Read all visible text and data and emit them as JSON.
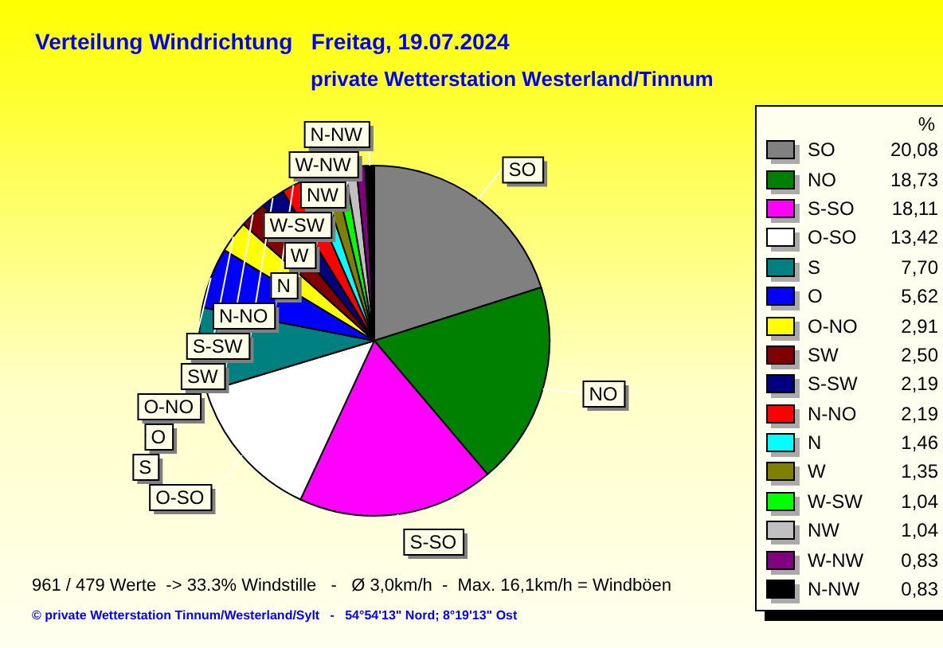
{
  "chart_data": {
    "type": "pie",
    "title": "Verteilung Windrichtung   Freitag, 19.07.2024",
    "subtitle": "private Wetterstation Westerland/Tinnum",
    "legend": "right",
    "legend_title": "%",
    "data_labels": true,
    "categories": [
      "SO",
      "NO",
      "S-SO",
      "O-SO",
      "S",
      "O",
      "O-NO",
      "SW",
      "S-SW",
      "N-NO",
      "N",
      "W",
      "W-SW",
      "NW",
      "W-NW",
      "N-NW"
    ],
    "values": [
      20.08,
      18.73,
      18.11,
      13.42,
      7.7,
      5.62,
      2.91,
      2.5,
      2.19,
      2.19,
      1.46,
      1.35,
      1.04,
      1.04,
      0.83,
      0.83
    ],
    "value_labels": [
      "20,08",
      "18,73",
      "18,11",
      "13,42",
      "7,70",
      "5,62",
      "2,91",
      "2,50",
      "2,19",
      "2,19",
      "1,46",
      "1,35",
      "1,04",
      "1,04",
      "0,83",
      "0,83"
    ],
    "colors": [
      "#808080",
      "#008000",
      "#ff00ff",
      "#ffffff",
      "#008080",
      "#0000ff",
      "#ffff00",
      "#800000",
      "#000080",
      "#ff0000",
      "#00ffff",
      "#808000",
      "#00ff00",
      "#c0c0c0",
      "#800080",
      "#000000"
    ],
    "annotations": [
      "961 / 479 Werte  -> 33.3% Windstille   -   Ø 3,0km/h  -  Max. 16,1km/h = Windböen",
      "© private Wetterstation Tinnum/Westerland/Sylt   -   54°54'13\" Nord; 8°19'13\" Ost"
    ]
  }
}
